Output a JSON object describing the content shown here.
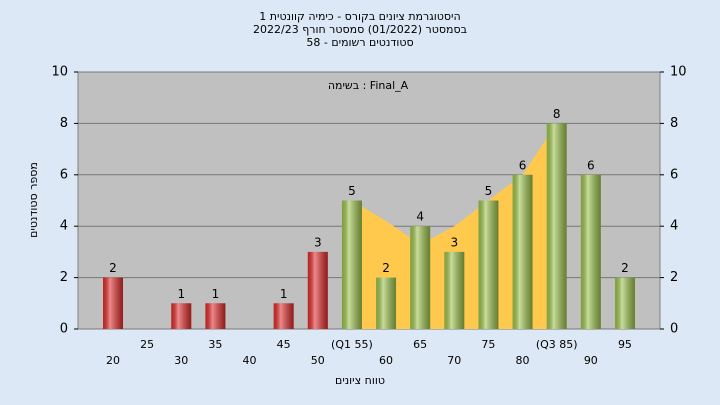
{
  "chart_data": {
    "type": "bar",
    "title": [
      "היסטוגרמת ציונים בקורס - כימיה קוונטית 1",
      "בסמסטר (01/2022) סמסטר חורף 2022/23",
      "סטודנטים רשומים - 58"
    ],
    "annotation": "בשימה : Final_A",
    "x_label": "טווח ציונים",
    "y_label": "מספר סטודנטים",
    "categories": [
      "20",
      "25",
      "30",
      "35",
      "40",
      "45",
      "50",
      "(Q1 55)",
      "60",
      "65",
      "70",
      "75",
      "80",
      "(Q3 85)",
      "90",
      "95"
    ],
    "values": [
      2,
      0,
      1,
      1,
      0,
      1,
      3,
      5,
      2,
      4,
      3,
      5,
      6,
      8,
      6,
      2
    ],
    "colors": [
      "#e02a2a",
      "#e02a2a",
      "#e02a2a",
      "#e02a2a",
      "#e02a2a",
      "#e02a2a",
      "#e02a2a",
      "#9cc24a",
      "#9cc24a",
      "#9cc24a",
      "#9cc24a",
      "#9cc24a",
      "#9cc24a",
      "#9cc24a",
      "#9cc24a",
      "#9cc24a"
    ],
    "area": {
      "color": "#ffc94d",
      "values": [
        null,
        null,
        null,
        null,
        null,
        null,
        null,
        5,
        4.2,
        3.3,
        4,
        5,
        6,
        8,
        null,
        null
      ]
    },
    "ylim": [
      0,
      10
    ],
    "yticks": [
      0,
      2,
      4,
      6,
      8,
      10
    ],
    "grid": true
  }
}
